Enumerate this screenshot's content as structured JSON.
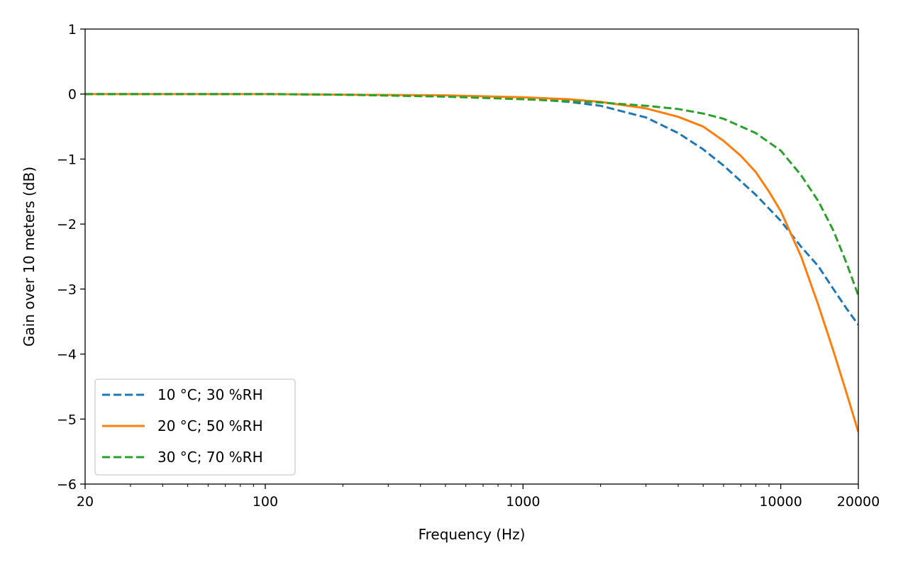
{
  "chart_data": {
    "type": "line",
    "title": "",
    "xlabel": "Frequency (Hz)",
    "ylabel": "Gain over 10 meters (dB)",
    "xscale": "log",
    "xlim": [
      20,
      20000
    ],
    "ylim": [
      -6,
      1
    ],
    "x_ticks": [
      20,
      100,
      1000,
      10000,
      20000
    ],
    "x_tick_labels": [
      "20",
      "100",
      "1000",
      "10000",
      "20000"
    ],
    "y_ticks": [
      1,
      0,
      -1,
      -2,
      -3,
      -4,
      -5,
      -6
    ],
    "y_tick_labels": [
      "1",
      "0",
      "−1",
      "−2",
      "−3",
      "−4",
      "−5",
      "−6"
    ],
    "grid": false,
    "legend_position": "lower-left",
    "series": [
      {
        "name": "10 °C; 30 %RH",
        "color": "#1f77b4",
        "style": "dashed",
        "x": [
          20,
          50,
          100,
          200,
          500,
          1000,
          1500,
          2000,
          3000,
          4000,
          5000,
          6000,
          8000,
          10000,
          12000,
          14000,
          16000,
          18000,
          20000
        ],
        "y": [
          0.0,
          0.0,
          0.0,
          -0.01,
          -0.03,
          -0.07,
          -0.12,
          -0.18,
          -0.36,
          -0.6,
          -0.85,
          -1.1,
          -1.55,
          -1.95,
          -2.35,
          -2.65,
          -3.0,
          -3.3,
          -3.55
        ]
      },
      {
        "name": "20 °C; 50 %RH",
        "color": "#ff7f0e",
        "style": "solid",
        "x": [
          20,
          50,
          100,
          200,
          500,
          1000,
          1500,
          2000,
          3000,
          4000,
          5000,
          6000,
          7000,
          8000,
          9000,
          10000,
          12000,
          14000,
          16000,
          18000,
          20000
        ],
        "y": [
          0.0,
          0.0,
          0.0,
          -0.01,
          -0.02,
          -0.05,
          -0.08,
          -0.12,
          -0.22,
          -0.35,
          -0.5,
          -0.72,
          -0.95,
          -1.2,
          -1.5,
          -1.8,
          -2.5,
          -3.25,
          -3.95,
          -4.6,
          -5.2
        ]
      },
      {
        "name": "30 °C; 70 %RH",
        "color": "#2ca02c",
        "style": "dashed",
        "x": [
          20,
          50,
          100,
          200,
          500,
          1000,
          1500,
          2000,
          3000,
          4000,
          5000,
          6000,
          8000,
          10000,
          12000,
          14000,
          16000,
          18000,
          20000
        ],
        "y": [
          0.0,
          0.0,
          0.0,
          -0.01,
          -0.04,
          -0.08,
          -0.11,
          -0.13,
          -0.18,
          -0.23,
          -0.3,
          -0.38,
          -0.6,
          -0.87,
          -1.25,
          -1.65,
          -2.1,
          -2.6,
          -3.1
        ]
      }
    ]
  }
}
